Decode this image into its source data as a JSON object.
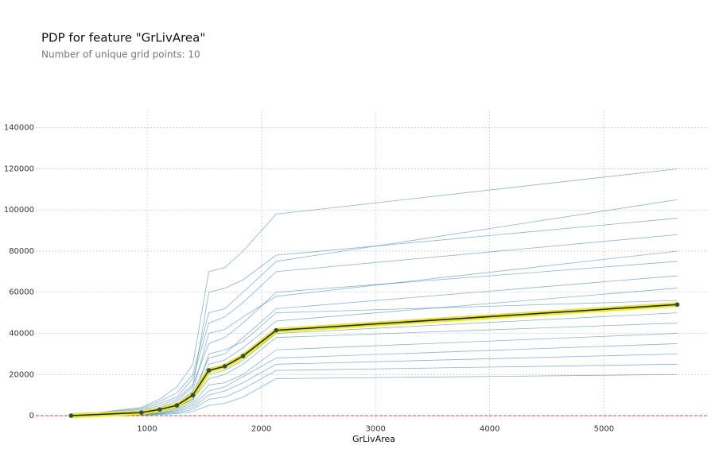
{
  "chart_data": {
    "type": "line",
    "title": "PDP for feature \"GrLivArea\"",
    "subtitle": "Number of unique grid points: 10",
    "x_label": "GrLivArea",
    "x": [
      334,
      950,
      1110,
      1260,
      1400,
      1540,
      1680,
      1840,
      2130,
      5642
    ],
    "pdp": {
      "color": "#1a1a1a",
      "band_color": "#e8e817",
      "marker_color": "#2f4f3f",
      "values": [
        0,
        1500,
        3000,
        5000,
        10000,
        22000,
        24000,
        29000,
        41500,
        54000
      ]
    },
    "ice": {
      "color": "#1f77b4",
      "lines": [
        [
          0,
          2000,
          4000,
          7000,
          14000,
          60000,
          62000,
          66000,
          78000,
          96000
        ],
        [
          0,
          1000,
          2000,
          4000,
          8000,
          20000,
          22000,
          27000,
          40000,
          50000
        ],
        [
          0,
          500,
          1000,
          2000,
          4000,
          10000,
          12000,
          16000,
          25000,
          30000
        ],
        [
          0,
          3000,
          6000,
          9000,
          18000,
          45000,
          48000,
          55000,
          70000,
          88000
        ],
        [
          0,
          1500,
          3000,
          5000,
          9000,
          25000,
          27000,
          33000,
          46000,
          62000
        ],
        [
          0,
          800,
          1500,
          3000,
          6000,
          15000,
          16000,
          20000,
          32000,
          40000
        ],
        [
          0,
          2500,
          5000,
          8000,
          15000,
          35000,
          38000,
          45000,
          60000,
          75000
        ],
        [
          0,
          200,
          500,
          1000,
          2000,
          5000,
          6000,
          9000,
          18000,
          20000
        ],
        [
          0,
          1200,
          2500,
          4000,
          8000,
          18000,
          20000,
          25000,
          38000,
          45000
        ],
        [
          0,
          3500,
          7000,
          11000,
          20000,
          50000,
          52000,
          60000,
          75000,
          105000
        ],
        [
          0,
          1000,
          2000,
          3500,
          7000,
          30000,
          32000,
          36000,
          50000,
          56000
        ],
        [
          0,
          600,
          1200,
          2500,
          5000,
          12000,
          14000,
          19000,
          28000,
          35000
        ],
        [
          0,
          2000,
          3500,
          6000,
          11000,
          28000,
          30000,
          38000,
          52000,
          68000
        ],
        [
          0,
          4000,
          8000,
          14000,
          25000,
          70000,
          72000,
          80000,
          98000,
          120000
        ],
        [
          0,
          300,
          800,
          1500,
          3000,
          8000,
          9000,
          13000,
          22000,
          25000
        ],
        [
          0,
          1800,
          3500,
          6000,
          12000,
          40000,
          42000,
          48000,
          58000,
          80000
        ]
      ]
    },
    "xlim": [
      25,
      5910
    ],
    "ylim": [
      -2500,
      148000
    ],
    "xticks": [
      1000,
      2000,
      3000,
      4000,
      5000
    ],
    "yticks": [
      0,
      20000,
      40000,
      60000,
      80000,
      100000,
      120000,
      140000
    ],
    "grid": true
  }
}
